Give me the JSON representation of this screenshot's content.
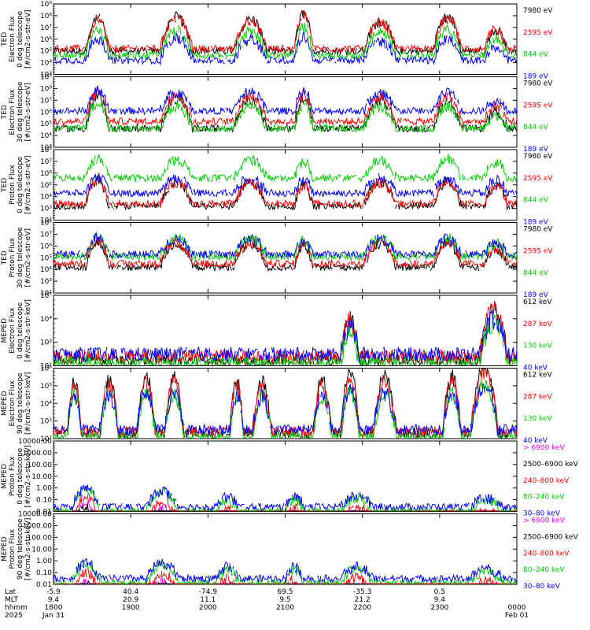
{
  "chart_data": [
    {
      "type": "line",
      "ylabel": [
        "TED",
        "Electron Flux",
        "0 deg telescope",
        "[#/cm2-s-str-eV]"
      ],
      "yscale": "log",
      "yticks": [
        "10⁹",
        "10⁸",
        "10⁷",
        "10⁶",
        "10⁵",
        "10⁴",
        "10³"
      ],
      "legend": [
        {
          "name": "7980 eV",
          "color": "#000000"
        },
        {
          "name": "2595 eV",
          "color": "#ff0000"
        },
        {
          "name": "844 eV",
          "color": "#00cc00"
        },
        {
          "name": "189 eV",
          "color": "#0000ff"
        }
      ],
      "levels": [
        2.0,
        2.2,
        1.6,
        1.2
      ],
      "bursts": [
        [
          0.07,
          0.12,
          2.8
        ],
        [
          0.23,
          0.3,
          2.9
        ],
        [
          0.39,
          0.46,
          2.7
        ],
        [
          0.52,
          0.56,
          3.2
        ],
        [
          0.67,
          0.74,
          2.5
        ],
        [
          0.82,
          0.88,
          2.9
        ],
        [
          0.93,
          0.98,
          1.8
        ]
      ]
    },
    {
      "type": "line",
      "ylabel": [
        "TED",
        "Electron Flux",
        "30 deg telescope",
        "[#/cm2-s-str-eV]"
      ],
      "yscale": "log",
      "yticks": [
        "10⁹",
        "10⁸",
        "10⁷",
        "10⁶",
        "10⁵",
        "10⁴",
        "10³"
      ],
      "legend": [
        {
          "name": "7980 eV",
          "color": "#000000"
        },
        {
          "name": "2595 eV",
          "color": "#ff0000"
        },
        {
          "name": "844 eV",
          "color": "#00cc00"
        },
        {
          "name": "189 eV",
          "color": "#0000ff"
        }
      ],
      "levels": [
        1.6,
        2.2,
        1.6,
        3.1
      ],
      "bursts": [
        [
          0.07,
          0.12,
          2.8
        ],
        [
          0.23,
          0.3,
          2.5
        ],
        [
          0.39,
          0.46,
          2.5
        ],
        [
          0.52,
          0.56,
          2.6
        ],
        [
          0.67,
          0.74,
          2.4
        ],
        [
          0.82,
          0.88,
          2.4
        ],
        [
          0.93,
          0.98,
          1.4
        ]
      ]
    },
    {
      "type": "line",
      "ylabel": [
        "TED",
        "Proton Flux",
        "0 deg telescope",
        "[#/cm2-s-str-eV]"
      ],
      "yscale": "log",
      "yticks": [
        "10⁸",
        "10⁷",
        "10⁶",
        "10⁵",
        "10⁴",
        "10³",
        "10²"
      ],
      "legend": [
        {
          "name": "7980 eV",
          "color": "#000000"
        },
        {
          "name": "2595 eV",
          "color": "#ff0000"
        },
        {
          "name": "844 eV",
          "color": "#00cc00"
        },
        {
          "name": "189 eV",
          "color": "#0000ff"
        }
      ],
      "levels": [
        1.2,
        1.4,
        3.6,
        2.3
      ],
      "bursts": [
        [
          0.07,
          0.12,
          2.2
        ],
        [
          0.23,
          0.3,
          2.0
        ],
        [
          0.39,
          0.46,
          2.0
        ],
        [
          0.52,
          0.56,
          1.8
        ],
        [
          0.67,
          0.74,
          2.0
        ],
        [
          0.82,
          0.88,
          2.1
        ],
        [
          0.93,
          0.98,
          1.7
        ]
      ]
    },
    {
      "type": "line",
      "ylabel": [
        "TED",
        "Proton Flux",
        "30 deg telescope",
        "[#/cm2-s-str-eV]"
      ],
      "yscale": "log",
      "yticks": [
        "10⁸",
        "10⁷",
        "10⁶",
        "10⁵",
        "10⁴",
        "10³",
        "10²"
      ],
      "legend": [
        {
          "name": "7980 eV",
          "color": "#000000"
        },
        {
          "name": "2595 eV",
          "color": "#ff0000"
        },
        {
          "name": "844 eV",
          "color": "#00cc00"
        },
        {
          "name": "189 eV",
          "color": "#0000ff"
        }
      ],
      "levels": [
        2.2,
        2.5,
        3.1,
        3.3
      ],
      "bursts": [
        [
          0.07,
          0.12,
          2.2
        ],
        [
          0.23,
          0.3,
          2.0
        ],
        [
          0.39,
          0.46,
          2.0
        ],
        [
          0.52,
          0.56,
          1.8
        ],
        [
          0.67,
          0.74,
          2.0
        ],
        [
          0.82,
          0.88,
          2.1
        ],
        [
          0.93,
          0.98,
          1.5
        ]
      ]
    },
    {
      "type": "line",
      "ylabel": [
        "MEPED",
        "Electron Flux",
        "0 deg telescope",
        "[#/cm2-s-str-keV]"
      ],
      "yscale": "log",
      "yticks": [
        "10⁵",
        "10⁴",
        "10³",
        "10²"
      ],
      "legend": [
        {
          "name": "612 keV",
          "color": "#000000"
        },
        {
          "name": "287 keV",
          "color": "#ff0000"
        },
        {
          "name": "130 keV",
          "color": "#00cc00"
        },
        {
          "name": "40 keV",
          "color": "#0000ff"
        }
      ],
      "levels": [
        0.2,
        0.4,
        0.1,
        0.5
      ],
      "bursts": [
        [
          0.62,
          0.66,
          1.7
        ],
        [
          0.92,
          0.98,
          2.3
        ]
      ]
    },
    {
      "type": "line",
      "ylabel": [
        "MEPED",
        "Electron Flux",
        "90 deg telescope",
        "[#/cm2-s-str-keV]"
      ],
      "yscale": "log",
      "yticks": [
        "10⁶",
        "10⁵",
        "10⁴",
        "10³",
        "10²"
      ],
      "legend": [
        {
          "name": "612 keV",
          "color": "#000000"
        },
        {
          "name": "287 keV",
          "color": "#ff0000"
        },
        {
          "name": "130 keV",
          "color": "#00cc00"
        },
        {
          "name": "40 keV",
          "color": "#0000ff"
        }
      ],
      "levels": [
        0.3,
        0.4,
        0.1,
        0.5
      ],
      "bursts": [
        [
          0.03,
          0.06,
          3.0
        ],
        [
          0.1,
          0.14,
          3.0
        ],
        [
          0.18,
          0.22,
          3.2
        ],
        [
          0.24,
          0.28,
          3.1
        ],
        [
          0.38,
          0.41,
          3.0
        ],
        [
          0.43,
          0.47,
          3.0
        ],
        [
          0.56,
          0.6,
          3.0
        ],
        [
          0.62,
          0.66,
          3.5
        ],
        [
          0.69,
          0.74,
          3.2
        ],
        [
          0.84,
          0.88,
          3.2
        ],
        [
          0.9,
          0.96,
          3.8
        ]
      ]
    },
    {
      "type": "line",
      "ylabel": [
        "MEPED",
        "Proton Flux",
        "0 deg telescope",
        "[#/cm2-s-str-keV]"
      ],
      "yscale": "log",
      "yticks": [
        "10000.00",
        "1000.00",
        "100.00",
        "10.00",
        "1.00",
        "0.10",
        "0.01"
      ],
      "legend": [
        {
          "name": "> 6900 keV",
          "color": "#ff00ff"
        },
        {
          "name": "2500–6900 keV",
          "color": "#000000"
        },
        {
          "name": "240–800 keV",
          "color": "#ff0000"
        },
        {
          "name": "80–240 keV",
          "color": "#00cc00"
        },
        {
          "name": "30–80 keV",
          "color": "#0000ff"
        }
      ],
      "levels": [
        -2.3,
        -2.3,
        -1.0,
        0.0,
        0.4
      ],
      "bursts": [
        [
          0.04,
          0.1,
          3.0
        ],
        [
          0.2,
          0.27,
          2.5
        ],
        [
          0.35,
          0.4,
          1.5
        ],
        [
          0.5,
          0.54,
          1.7
        ],
        [
          0.62,
          0.69,
          1.8
        ],
        [
          0.9,
          0.97,
          1.3
        ]
      ]
    },
    {
      "type": "line",
      "ylabel": [
        "MEPED",
        "Proton Flux",
        "90 deg telescope",
        "[#/cm2-s-str-keV]"
      ],
      "yscale": "log",
      "yticks": [
        "10000.00",
        "1000.00",
        "100.00",
        "10.00",
        "1.00",
        "0.10",
        "0.01"
      ],
      "legend": [
        {
          "name": "> 6900 keV",
          "color": "#ff00ff"
        },
        {
          "name": "2500–6900 keV",
          "color": "#000000"
        },
        {
          "name": "240–800 keV",
          "color": "#ff0000"
        },
        {
          "name": "80–240 keV",
          "color": "#00cc00"
        },
        {
          "name": "30–80 keV",
          "color": "#0000ff"
        }
      ],
      "levels": [
        -2.3,
        -2.3,
        -0.9,
        0.1,
        0.5
      ],
      "bursts": [
        [
          0.04,
          0.1,
          2.5
        ],
        [
          0.2,
          0.27,
          2.5
        ],
        [
          0.35,
          0.4,
          1.8
        ],
        [
          0.5,
          0.54,
          1.8
        ],
        [
          0.62,
          0.69,
          1.9
        ],
        [
          0.9,
          0.97,
          1.5
        ]
      ]
    }
  ],
  "x_axis": {
    "row_labels": [
      "Lat",
      "MLT",
      "hhmm",
      "2025"
    ],
    "ticks": [
      {
        "lat": "-5.9",
        "mlt": "9.4",
        "time": "1800",
        "date": "Jan 31"
      },
      {
        "lat": "40.4",
        "mlt": "20.9",
        "time": "1900",
        "date": ""
      },
      {
        "lat": "-74.9",
        "mlt": "11.1",
        "time": "2000",
        "date": ""
      },
      {
        "lat": "69.5",
        "mlt": "9.5",
        "time": "2100",
        "date": ""
      },
      {
        "lat": "-35.3",
        "mlt": "21.2",
        "time": "2200",
        "date": ""
      },
      {
        "lat": "0.5",
        "mlt": "9.4",
        "time": "2300",
        "date": ""
      },
      {
        "lat": "",
        "mlt": "",
        "time": "0000",
        "date": "Feb 01"
      }
    ]
  }
}
